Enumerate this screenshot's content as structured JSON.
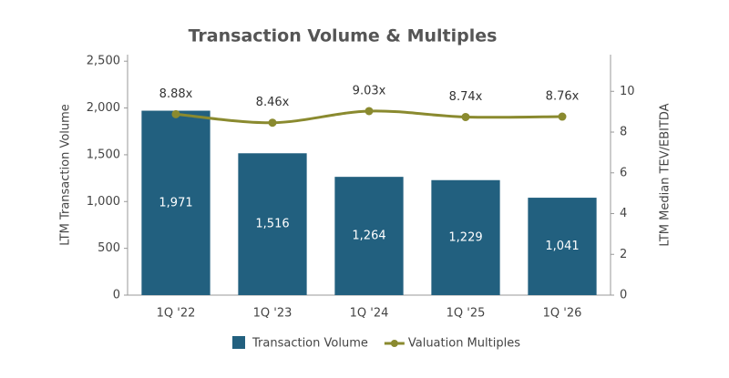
{
  "chart_data": {
    "type": "bar",
    "title": "Transaction Volume & Multiples",
    "categories": [
      "1Q '22",
      "1Q '23",
      "1Q '24",
      "1Q '25",
      "1Q '26"
    ],
    "series": [
      {
        "name": "Transaction Volume",
        "type": "bar",
        "color": "#22607f",
        "values": [
          1971,
          1516,
          1264,
          1229,
          1041
        ],
        "value_labels": [
          "1,971",
          "1,516",
          "1,264",
          "1,229",
          "1,041"
        ]
      },
      {
        "name": "Valuation Multiples",
        "type": "line",
        "axis": "y2",
        "color": "#8a8a2f",
        "values": [
          8.88,
          8.46,
          9.03,
          8.74,
          8.76
        ],
        "value_labels": [
          "8.88x",
          "8.46x",
          "9.03x",
          "8.74x",
          "8.76x"
        ]
      }
    ],
    "y_label": "LTM Transaction Volume",
    "y2_label": "LTM Median TEV/EBITDA",
    "ylim": [
      0,
      2570
    ],
    "yticks": [
      0,
      500,
      {
        "value": 1000,
        "label": "1,000"
      },
      {
        "value": 1500,
        "label": "1,500"
      },
      {
        "value": 2000,
        "label": "2,000"
      },
      {
        "value": 2500,
        "label": "2,500"
      }
    ],
    "y2lim": [
      0,
      11.8
    ],
    "y2ticks": [
      0,
      2,
      4,
      6,
      8,
      10
    ],
    "legend": "bottom"
  }
}
